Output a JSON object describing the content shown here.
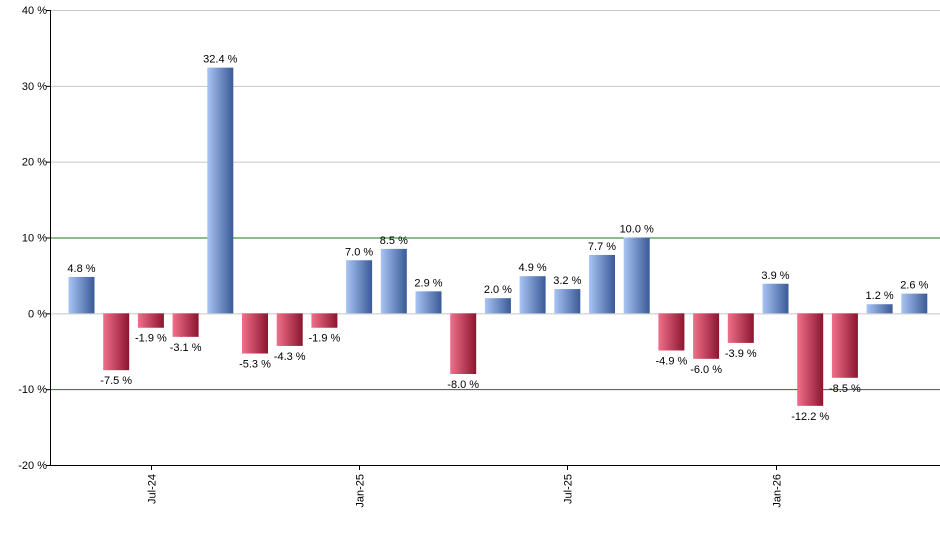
{
  "chart_data": {
    "type": "bar",
    "title": "",
    "xlabel": "",
    "ylabel": "",
    "ylim": [
      -20,
      40
    ],
    "yticks": [
      -20,
      -10,
      0,
      10,
      20,
      30,
      40
    ],
    "ytick_labels": [
      "-20 %",
      "-10 %",
      "0 %",
      "10 %",
      "20 %",
      "30 %",
      "40 %"
    ],
    "reference_lines": [
      10,
      -10
    ],
    "grid": true,
    "xtick_labels": [
      {
        "index": 2,
        "label": "Jul-24"
      },
      {
        "index": 8,
        "label": "Jan-25"
      },
      {
        "index": 14,
        "label": "Jul-25"
      },
      {
        "index": 20,
        "label": "Jan-26"
      }
    ],
    "values": [
      4.8,
      -7.5,
      -1.9,
      -3.1,
      32.4,
      -5.3,
      -4.3,
      -1.9,
      7.0,
      8.5,
      2.9,
      -8.0,
      2.0,
      4.9,
      3.2,
      7.7,
      10.0,
      -4.9,
      -6.0,
      -3.9,
      3.9,
      -12.2,
      -8.5,
      1.2,
      2.6
    ],
    "data_labels": [
      "4.8 %",
      "-7.5 %",
      "-1.9 %",
      "-3.1 %",
      "32.4 %",
      "-5.3 %",
      "-4.3 %",
      "-1.9 %",
      "7.0 %",
      "8.5 %",
      "2.9 %",
      "-8.0 %",
      "2.0 %",
      "4.9 %",
      "3.2 %",
      "7.7 %",
      "10.0 %",
      "-4.9 %",
      "-6.0 %",
      "-3.9 %",
      "3.9 %",
      "-12.2 %",
      "-8.5 %",
      "1.2 %",
      "2.6 %"
    ],
    "colors": {
      "positive_light": "#a9c4f5",
      "positive_dark": "#3a5a96",
      "negative_light": "#f0708a",
      "negative_dark": "#8c1530",
      "grid": "#c8c8c8",
      "reference_line": "#1a7a1a",
      "axis": "#000000"
    }
  }
}
